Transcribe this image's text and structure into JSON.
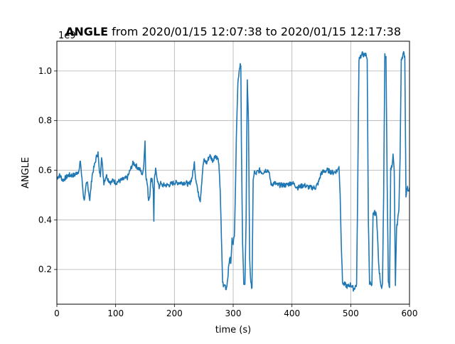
{
  "figure": {
    "title_bold": "ANGLE",
    "title_rest": " from 2020/01/15 12:07:38 to 2020/01/15 12:17:38"
  },
  "chart_data": {
    "type": "line",
    "title": "ANGLE from 2020/01/15 12:07:38 to 2020/01/15 12:17:38",
    "xlabel": "time (s)",
    "ylabel": "ANGLE",
    "y_offset_text": "1e9",
    "xlim": [
      0,
      600
    ],
    "ylim": [
      0.06,
      1.12
    ],
    "y_scale_note": "values are multiplied by 1e9",
    "xticks": [
      0,
      100,
      200,
      300,
      400,
      500,
      600
    ],
    "yticks": [
      0.2,
      0.4,
      0.6,
      0.8,
      1.0
    ],
    "xtick_labels": [
      "0",
      "100",
      "200",
      "300",
      "400",
      "500",
      "600"
    ],
    "ytick_labels": [
      "0.2",
      "0.4",
      "0.6",
      "0.8",
      "1.0"
    ],
    "grid": true,
    "line_color": "#1f77b4",
    "series": [
      {
        "x": [
          0,
          5,
          10,
          20,
          30,
          38,
          40,
          42,
          44,
          46,
          48,
          50,
          52,
          56,
          60,
          64,
          68,
          70,
          72,
          74,
          76,
          78,
          80,
          84,
          88,
          92,
          96,
          100,
          110,
          120,
          128,
          130,
          134,
          138,
          142,
          146,
          148,
          150,
          151,
          152,
          154,
          156,
          158,
          160,
          162,
          164,
          165,
          166,
          168,
          170,
          172,
          174,
          176,
          178,
          180,
          190,
          200,
          210,
          220,
          225,
          230,
          232,
          234,
          236,
          238,
          240,
          244,
          248,
          250,
          255,
          260,
          265,
          270,
          275,
          278,
          280,
          282,
          284,
          286,
          288,
          290,
          292,
          294,
          296,
          298,
          300,
          302,
          304,
          306,
          308,
          310,
          312,
          313,
          314,
          316,
          318,
          320,
          322,
          324,
          326,
          328,
          330,
          332,
          334,
          336,
          338,
          340,
          345,
          350,
          355,
          360,
          365,
          370,
          375,
          380,
          390,
          400,
          410,
          420,
          430,
          440,
          445,
          450,
          460,
          470,
          478,
          480,
          482,
          484,
          486,
          488,
          490,
          495,
          500,
          505,
          510,
          512,
          514,
          516,
          518,
          520,
          524,
          526,
          528,
          530,
          532,
          534,
          536,
          538,
          540,
          544,
          548,
          552,
          554,
          556,
          558,
          560,
          562,
          564,
          566,
          568,
          570,
          572,
          574,
          576,
          578,
          580,
          582,
          584,
          586,
          588,
          590,
          592,
          594,
          596,
          598,
          600
        ],
        "values": [
          0.57,
          0.58,
          0.56,
          0.58,
          0.58,
          0.6,
          0.64,
          0.58,
          0.53,
          0.48,
          0.5,
          0.54,
          0.55,
          0.48,
          0.58,
          0.62,
          0.66,
          0.67,
          0.6,
          0.58,
          0.66,
          0.6,
          0.55,
          0.58,
          0.56,
          0.55,
          0.56,
          0.55,
          0.56,
          0.57,
          0.62,
          0.63,
          0.62,
          0.61,
          0.6,
          0.58,
          0.63,
          0.72,
          0.6,
          0.57,
          0.54,
          0.48,
          0.5,
          0.56,
          0.57,
          0.52,
          0.4,
          0.56,
          0.6,
          0.58,
          0.55,
          0.53,
          0.55,
          0.54,
          0.54,
          0.54,
          0.55,
          0.55,
          0.55,
          0.54,
          0.57,
          0.6,
          0.63,
          0.57,
          0.55,
          0.51,
          0.48,
          0.6,
          0.64,
          0.63,
          0.66,
          0.64,
          0.66,
          0.64,
          0.52,
          0.32,
          0.15,
          0.13,
          0.14,
          0.12,
          0.15,
          0.2,
          0.25,
          0.22,
          0.32,
          0.31,
          0.33,
          0.55,
          0.8,
          0.95,
          1.0,
          1.03,
          1.02,
          0.7,
          0.3,
          0.15,
          0.14,
          0.4,
          0.97,
          0.8,
          0.25,
          0.14,
          0.13,
          0.55,
          0.6,
          0.58,
          0.59,
          0.6,
          0.59,
          0.6,
          0.6,
          0.54,
          0.55,
          0.54,
          0.54,
          0.54,
          0.55,
          0.53,
          0.54,
          0.53,
          0.53,
          0.55,
          0.59,
          0.6,
          0.59,
          0.6,
          0.62,
          0.5,
          0.3,
          0.15,
          0.14,
          0.14,
          0.13,
          0.14,
          0.12,
          0.14,
          0.55,
          1.05,
          1.06,
          1.06,
          1.07,
          1.06,
          1.07,
          1.05,
          0.4,
          0.15,
          0.14,
          0.13,
          0.42,
          0.43,
          0.42,
          0.2,
          0.13,
          0.14,
          0.5,
          1.06,
          1.05,
          0.55,
          0.15,
          0.12,
          0.6,
          0.62,
          0.66,
          0.6,
          0.14,
          0.36,
          0.4,
          0.45,
          0.65,
          1.05,
          1.06,
          1.07,
          1.06,
          0.5,
          0.53,
          0.52,
          0.53
        ]
      }
    ]
  }
}
